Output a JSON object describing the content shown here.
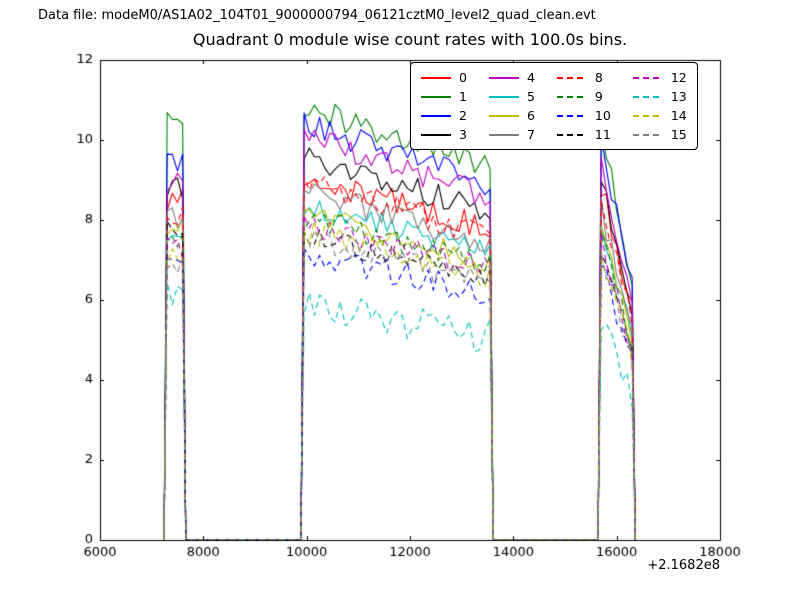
{
  "figure": {
    "data_file_label": "Data file: modeM0/AS1A02_104T01_9000000794_06121cztM0_level2_quad_clean.evt",
    "background": "#ffffff",
    "axis_color": "#000000"
  },
  "chart_data": {
    "type": "line",
    "title": "Quadrant 0 module wise count rates with 100.0s bins.",
    "xlabel": "",
    "ylabel": "",
    "xlim": [
      6000,
      18000
    ],
    "ylim": [
      0,
      12
    ],
    "xticks": [
      6000,
      8000,
      10000,
      12000,
      14000,
      16000,
      18000
    ],
    "yticks": [
      0,
      2,
      4,
      6,
      8,
      10,
      12
    ],
    "x_offset_label": "+2.1682e8",
    "bin_seconds": 100,
    "grid": false,
    "legend": {
      "columns": 4,
      "order": "column-major",
      "location": "upper right"
    },
    "noise_amplitude": 0.32,
    "segments": [
      {
        "x_start": 7300,
        "x_end": 7600,
        "profile": "flat"
      },
      {
        "x_start": 9950,
        "x_end": 13550,
        "profile": "slow_decline"
      },
      {
        "x_start": 15700,
        "x_end": 16300,
        "profile": "decline"
      }
    ],
    "series": [
      {
        "name": "0",
        "color": "#ff0000",
        "linestyle": "solid",
        "levels": [
          8.5,
          8.35,
          8.4
        ]
      },
      {
        "name": "1",
        "color": "#008000",
        "linestyle": "solid",
        "levels": [
          10.4,
          9.95,
          9.6
        ]
      },
      {
        "name": "2",
        "color": "#0000ff",
        "linestyle": "solid",
        "levels": [
          9.35,
          9.55,
          9.3
        ]
      },
      {
        "name": "3",
        "color": "#000000",
        "linestyle": "solid",
        "levels": [
          8.8,
          8.8,
          8.6
        ]
      },
      {
        "name": "4",
        "color": "#bf00bf",
        "linestyle": "solid",
        "levels": [
          9.0,
          9.25,
          8.9
        ]
      },
      {
        "name": "5",
        "color": "#00bfbf",
        "linestyle": "solid",
        "levels": [
          7.7,
          7.7,
          7.5
        ]
      },
      {
        "name": "6",
        "color": "#bfbf00",
        "linestyle": "solid",
        "levels": [
          7.9,
          7.5,
          7.4
        ]
      },
      {
        "name": "7",
        "color": "#7f7f7f",
        "linestyle": "solid",
        "levels": [
          8.1,
          8.0,
          7.8
        ]
      },
      {
        "name": "8",
        "color": "#ff0000",
        "linestyle": "dashed",
        "levels": [
          8.2,
          8.2,
          8.0
        ]
      },
      {
        "name": "9",
        "color": "#008000",
        "linestyle": "dashed",
        "levels": [
          7.5,
          7.4,
          7.2
        ]
      },
      {
        "name": "10",
        "color": "#0000ff",
        "linestyle": "dashed",
        "levels": [
          7.0,
          6.6,
          6.5
        ]
      },
      {
        "name": "11",
        "color": "#000000",
        "linestyle": "dashed",
        "levels": [
          7.7,
          7.0,
          6.8
        ]
      },
      {
        "name": "12",
        "color": "#bf00bf",
        "linestyle": "dashed",
        "levels": [
          7.3,
          7.25,
          7.0
        ]
      },
      {
        "name": "13",
        "color": "#00bfbf",
        "linestyle": "dashed",
        "levels": [
          6.2,
          5.45,
          5.1
        ],
        "noise": 0.45
      },
      {
        "name": "14",
        "color": "#bfbf00",
        "linestyle": "dashed",
        "levels": [
          7.1,
          7.1,
          6.8
        ]
      },
      {
        "name": "15",
        "color": "#7f7f7f",
        "linestyle": "dashed",
        "levels": [
          6.9,
          6.9,
          6.7
        ]
      }
    ]
  }
}
